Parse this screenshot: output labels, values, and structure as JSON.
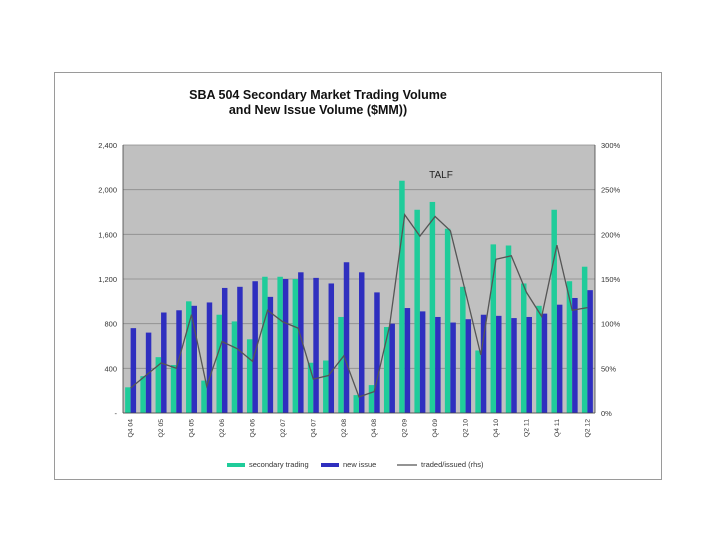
{
  "chart_data": {
    "type": "bar",
    "title_line1": "SBA 504 Secondary Market Trading Volume",
    "title_line2": "and New Issue Volume ($MM))",
    "annotation": "TALF",
    "categories": [
      "Q4 04",
      "Q1 05",
      "Q2 05",
      "Q3 05",
      "Q4 05",
      "Q1 06",
      "Q2 06",
      "Q3 06",
      "Q4 06",
      "Q1 07",
      "Q2 07",
      "Q3 07",
      "Q4 07",
      "Q1 08",
      "Q2 08",
      "Q3 08",
      "Q4 08",
      "Q1 09",
      "Q2 09",
      "Q3 09",
      "Q4 09",
      "Q1 10",
      "Q2 10",
      "Q3 10",
      "Q4 10",
      "Q1 11",
      "Q2 11",
      "Q3 11",
      "Q4 11",
      "Q1 12",
      "Q2 12"
    ],
    "tick_labels": [
      "Q4 04",
      "Q2 05",
      "Q4 05",
      "Q2 06",
      "Q4 06",
      "Q2 07",
      "Q4 07",
      "Q2 08",
      "Q4 08",
      "Q2 09",
      "Q4 09",
      "Q2 10",
      "Q4 10",
      "Q2 11",
      "Q4 11",
      "Q2 12"
    ],
    "series": [
      {
        "name": "secondary trading",
        "color": "#1fcc9a",
        "values": [
          230,
          330,
          500,
          430,
          1000,
          290,
          880,
          820,
          660,
          1220,
          1220,
          1200,
          450,
          470,
          860,
          160,
          250,
          770,
          2080,
          1820,
          1890,
          1650,
          1130,
          560,
          1510,
          1500,
          1160,
          960,
          1820,
          1180,
          1310
        ]
      },
      {
        "name": "new issue",
        "color": "#2f2fbf",
        "values": [
          760,
          720,
          900,
          920,
          960,
          990,
          1120,
          1130,
          1180,
          1040,
          1200,
          1260,
          1210,
          1160,
          1350,
          1260,
          1080,
          800,
          940,
          910,
          860,
          810,
          840,
          880,
          870,
          850,
          860,
          890,
          970,
          1030,
          1100
        ]
      },
      {
        "name": "traded/issued (rhs)",
        "color": "#555555",
        "axis": "right",
        "values": [
          28,
          42,
          56,
          50,
          110,
          30,
          80,
          72,
          58,
          115,
          102,
          95,
          38,
          42,
          64,
          18,
          24,
          97,
          222,
          198,
          220,
          204,
          135,
          65,
          172,
          176,
          135,
          108,
          188,
          115,
          118
        ]
      }
    ],
    "y_left": {
      "min": 0,
      "max": 2400,
      "ticks": [
        0,
        400,
        800,
        1200,
        1600,
        2000,
        2400
      ],
      "tick_labels": [
        "-",
        "400",
        "800",
        "1,200",
        "1,600",
        "2,000",
        "2,400"
      ]
    },
    "y_right": {
      "min": 0,
      "max": 300,
      "ticks": [
        0,
        50,
        100,
        150,
        200,
        250,
        300
      ],
      "tick_labels": [
        "0%",
        "50%",
        "100%",
        "150%",
        "200%",
        "250%",
        "300%"
      ]
    },
    "grid": true,
    "legend_position": "bottom"
  },
  "colors": {
    "plot_bg": "#c0c0c0",
    "grid": "#8a8a8a",
    "axis_text": "#333333"
  }
}
